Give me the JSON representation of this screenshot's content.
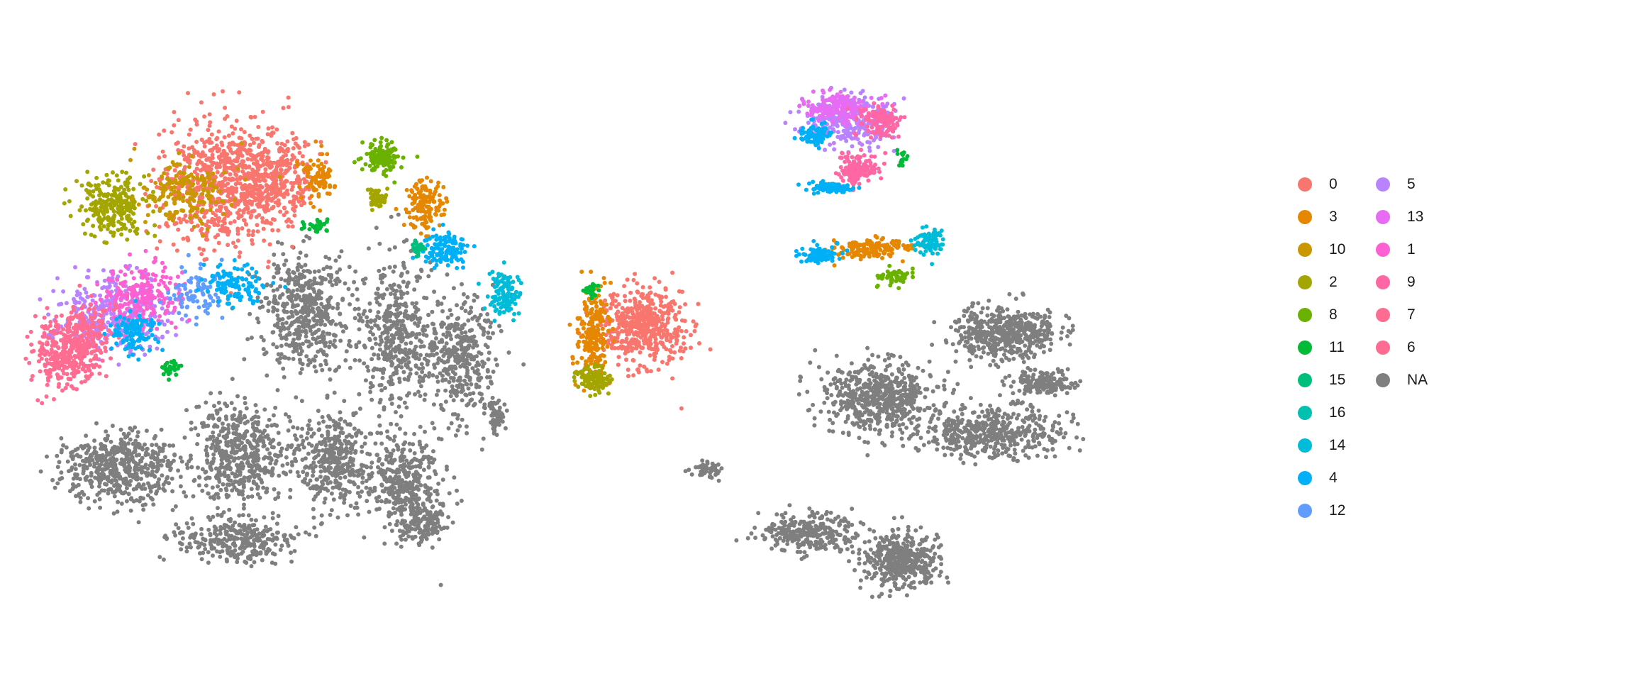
{
  "chart_data": {
    "type": "scatter",
    "title": "",
    "xlabel": "",
    "ylabel": "",
    "axes_visible": false,
    "grid": false,
    "legend_position": "right",
    "legend_columns": 2,
    "legend": [
      {
        "label": "0",
        "color": "#F8766D"
      },
      {
        "label": "3",
        "color": "#E58700"
      },
      {
        "label": "10",
        "color": "#C99800"
      },
      {
        "label": "2",
        "color": "#A3A500"
      },
      {
        "label": "8",
        "color": "#6BB100"
      },
      {
        "label": "11",
        "color": "#00BA38"
      },
      {
        "label": "15",
        "color": "#00BF7D"
      },
      {
        "label": "16",
        "color": "#00C0AF"
      },
      {
        "label": "14",
        "color": "#00BCD8"
      },
      {
        "label": "4",
        "color": "#00B0F6"
      },
      {
        "label": "12",
        "color": "#619CFF"
      },
      {
        "label": "5",
        "color": "#B983FF"
      },
      {
        "label": "13",
        "color": "#E76BF3"
      },
      {
        "label": "1",
        "color": "#FD61D1"
      },
      {
        "label": "9",
        "color": "#FF67A4"
      },
      {
        "label": "7",
        "color": "#FF6C91"
      },
      {
        "label": "6",
        "color": "#FF6C91"
      },
      {
        "label": "NA",
        "color": "#7F7F7F"
      }
    ],
    "clusters": [
      {
        "label": "NA",
        "x": 0.28,
        "y": 0.58,
        "n": 900
      },
      {
        "label": "NA",
        "x": 0.13,
        "y": 0.78,
        "n": 650
      },
      {
        "label": "0",
        "x": 0.17,
        "y": 0.28,
        "n": 520
      },
      {
        "label": "0",
        "x": 0.39,
        "y": 0.47,
        "n": 320
      },
      {
        "label": "5",
        "x": 0.51,
        "y": 0.18,
        "n": 260
      },
      {
        "label": "7",
        "x": 0.08,
        "y": 0.49,
        "n": 260
      },
      {
        "label": "2",
        "x": 0.06,
        "y": 0.27,
        "n": 150
      },
      {
        "label": "4",
        "x": 0.25,
        "y": 0.35,
        "n": 140
      },
      {
        "label": "NA",
        "x": 0.56,
        "y": 0.62,
        "n": 420
      },
      {
        "label": "NA",
        "x": 0.55,
        "y": 0.84,
        "n": 300
      }
    ]
  }
}
